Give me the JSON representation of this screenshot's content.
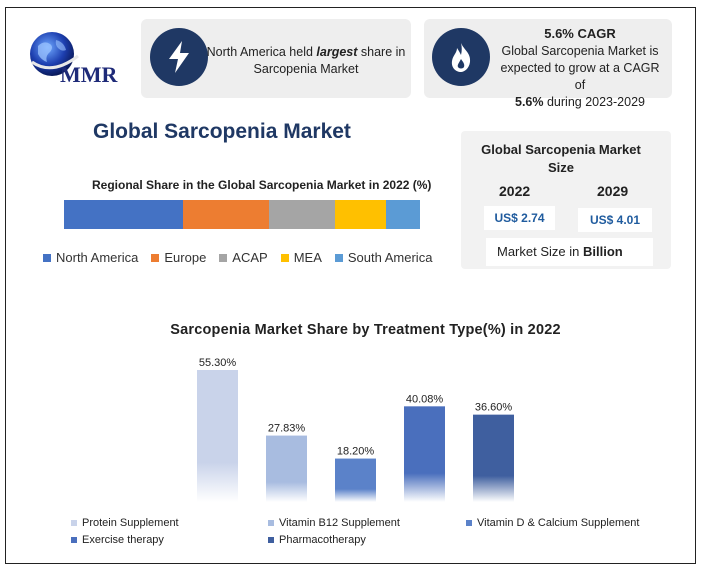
{
  "brand": {
    "logo_text": "MMR"
  },
  "cards": {
    "share": {
      "prefix": "North America held ",
      "emphasis": "largest",
      "suffix": " share in",
      "line2": "Sarcopenia Market"
    },
    "cagr": {
      "title": "5.6% CAGR",
      "line1": "Global Sarcopenia Market is",
      "line2": "expected to grow at a CAGR of",
      "line3_bold": "5.6%",
      "line3_rest": " during 2023-2029"
    }
  },
  "main_title": "Global Sarcopenia Market",
  "market_size": {
    "title": "Global Sarcopenia Market Size",
    "year1": "2022",
    "year2": "2029",
    "value1": "US$ 2.74",
    "value2": "US$ 4.01",
    "unit_prefix": "Market Size in ",
    "unit_bold": "Billion"
  },
  "colors": {
    "navy": "#1f3864",
    "north_america": "#4472c4",
    "europe": "#ed7d31",
    "acap": "#a5a5a5",
    "mea": "#ffc000",
    "south_america": "#5b9bd5"
  },
  "chart_data": [
    {
      "type": "bar",
      "orientation": "horizontal-stacked",
      "title": "Regional Share in the Global Sarcopenia Market in 2022 (%)",
      "legend_position": "bottom",
      "series": [
        {
          "name": "North America",
          "value": 33.5,
          "color": "#4472c4"
        },
        {
          "name": "Europe",
          "value": 24.0,
          "color": "#ed7d31"
        },
        {
          "name": "ACAP",
          "value": 18.5,
          "color": "#a5a5a5"
        },
        {
          "name": "MEA",
          "value": 14.5,
          "color": "#ffc000"
        },
        {
          "name": "South America",
          "value": 9.5,
          "color": "#5b9bd5"
        }
      ]
    },
    {
      "type": "bar",
      "title": "Sarcopenia Market Share by Treatment Type(%) in 2022",
      "categories": [
        "Protein Supplement",
        "Vitamin B12 Supplement",
        "Vitamin D & Calcium Supplement",
        "Exercise therapy",
        "Pharmacotherapy"
      ],
      "values": [
        55.3,
        27.83,
        18.2,
        40.08,
        36.6
      ],
      "labels": [
        "55.30%",
        "27.83%",
        "18.20%",
        "40.08%",
        "36.60%"
      ],
      "colors": [
        "#c9d3ea",
        "#a8bce0",
        "#5b82c9",
        "#4a6fbd",
        "#3f5f9f"
      ],
      "ylim": [
        0,
        55.3
      ],
      "grid": false,
      "legend_position": "bottom"
    }
  ]
}
